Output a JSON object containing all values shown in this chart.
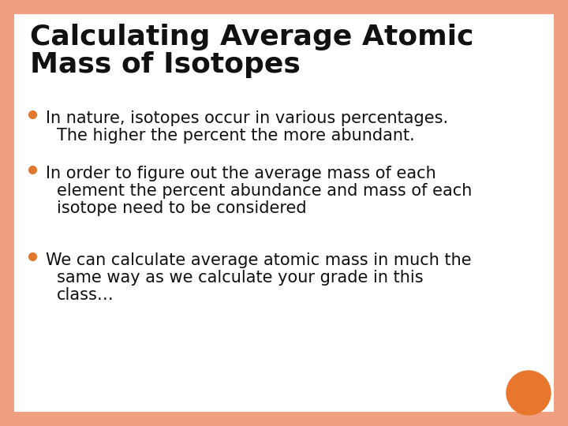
{
  "title_line1": "Calculating Average Atomic",
  "title_line2": "Mass of Isotopes",
  "bullet1_line1": "In nature, isotopes occur in various percentages.",
  "bullet1_line2": "The higher the percent the more abundant.",
  "bullet2_line1": "In order to figure out the average mass of each",
  "bullet2_line2": "element the percent abundance and mass of each",
  "bullet2_line3": "isotope need to be considered",
  "bullet3_line1": "We can calculate average atomic mass in much the",
  "bullet3_line2": "same way as we calculate your grade in this",
  "bullet3_line3": "class…",
  "bg_color": "#ffffff",
  "border_color": "#f0a080",
  "title_color": "#111111",
  "bullet_color": "#111111",
  "bullet_dot_color": "#e07830",
  "orange_circle_color": "#e8762c",
  "title_font_size": 26,
  "bullet_font_size": 15
}
